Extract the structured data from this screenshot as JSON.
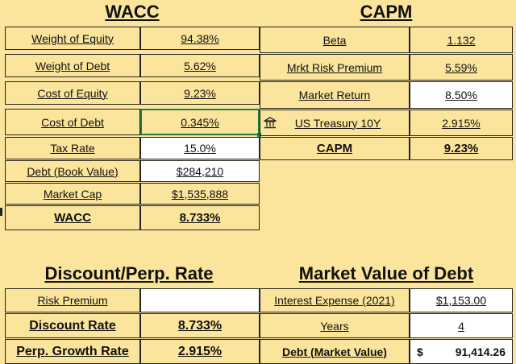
{
  "wacc": {
    "title": "WACC",
    "rows": [
      {
        "label": "Weight of Equity",
        "value": "94.38%"
      },
      {
        "label": "Weight of Debt",
        "value": "5.62%"
      },
      {
        "label": "Cost of Equity",
        "value": "9.23%"
      },
      {
        "label": "Cost of Debt",
        "value": "0.345%"
      },
      {
        "label": "Tax Rate",
        "value": "15.0%"
      },
      {
        "label": "Debt (Book Value)",
        "value": "$284,210"
      },
      {
        "label": "Market Cap",
        "value": "$1,535,888"
      },
      {
        "label": "WACC",
        "value": "8.733%"
      }
    ]
  },
  "capm": {
    "title": "CAPM",
    "rows": [
      {
        "label": "Beta",
        "value": "1.132"
      },
      {
        "label": "Mrkt Risk Premium",
        "value": "5.59%"
      },
      {
        "label": "Market Return",
        "value": "8.50%"
      },
      {
        "label": "US Treasury 10Y",
        "value": "2.915%"
      },
      {
        "label": "CAPM",
        "value": "9.23%"
      }
    ]
  },
  "discount": {
    "title": "Discount/Perp. Rate",
    "rows": [
      {
        "label": "Risk Premium",
        "value": ""
      },
      {
        "label": "Discount Rate",
        "value": "8.733%"
      },
      {
        "label": "Perp. Growth Rate",
        "value": "2.915%"
      }
    ]
  },
  "mvd": {
    "title": "Market Value of Debt",
    "rows": [
      {
        "label": "Interest Expense (2021)",
        "value": "$1,153.00"
      },
      {
        "label": "Years",
        "value": "4"
      },
      {
        "label": "Debt (Market Value)",
        "value_symbol": "$",
        "value": "91,414.26"
      }
    ]
  },
  "colors": {
    "background": "#fbe59c",
    "white_cell": "#ffffff",
    "selection": "#1e7b45",
    "border": "#222222"
  },
  "icons": {
    "treasury": "bank-icon"
  }
}
